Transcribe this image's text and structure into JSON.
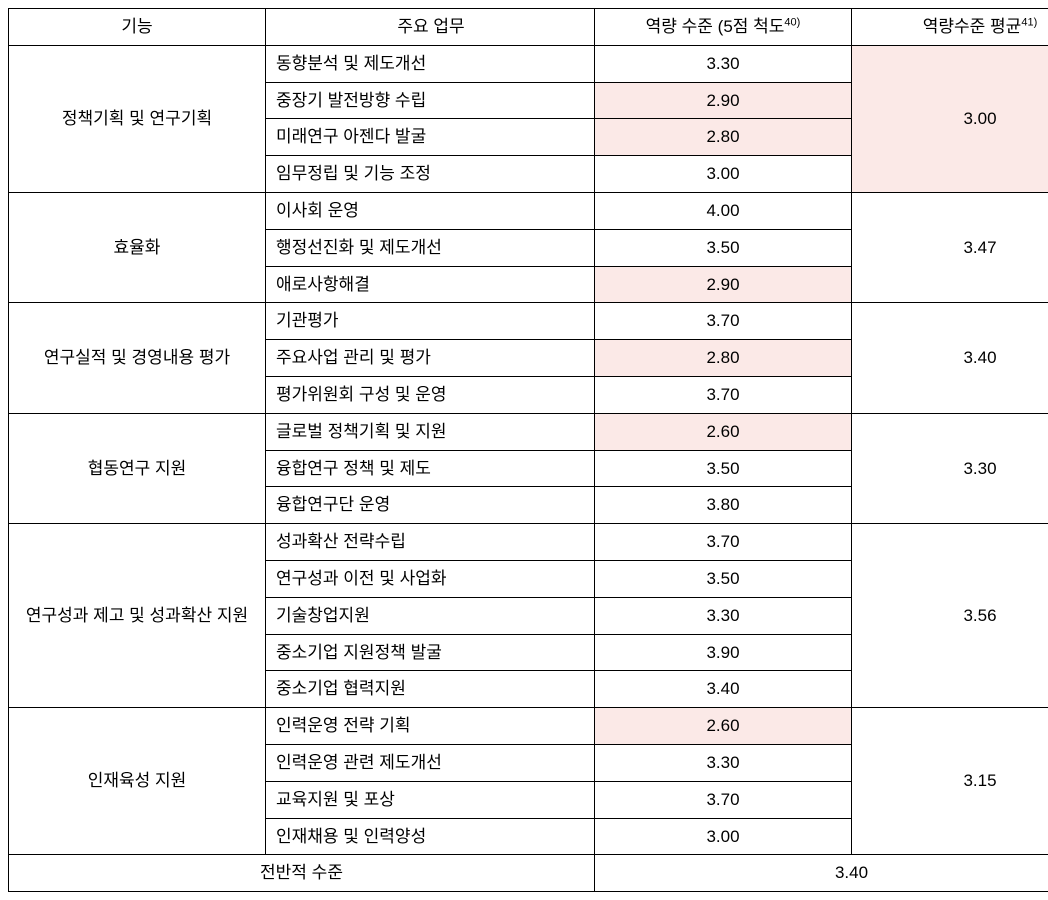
{
  "headers": {
    "func": "기능",
    "task": "주요 업무",
    "score": "역량 수준 (5점 척도",
    "score_sup": "40)",
    "avg": "역량수준 평균",
    "avg_sup": "41)"
  },
  "highlight_color": "#fbe9e7",
  "groups": [
    {
      "func": "정책기획 및 연구기획",
      "avg": "3.00",
      "avg_hl": true,
      "rows": [
        {
          "task": "동향분석 및 제도개선",
          "score": "3.30",
          "hl": false
        },
        {
          "task": "중장기 발전방향 수립",
          "score": "2.90",
          "hl": true
        },
        {
          "task": "미래연구 아젠다 발굴",
          "score": "2.80",
          "hl": true
        },
        {
          "task": "임무정립 및 기능 조정",
          "score": "3.00",
          "hl": false
        }
      ]
    },
    {
      "func": "효율화",
      "avg": "3.47",
      "avg_hl": false,
      "rows": [
        {
          "task": "이사회  운영",
          "score": "4.00",
          "hl": false
        },
        {
          "task": "행정선진화 및 제도개선",
          "score": "3.50",
          "hl": false
        },
        {
          "task": "애로사항해결",
          "score": "2.90",
          "hl": true
        }
      ]
    },
    {
      "func": "연구실적 및 경영내용 평가",
      "avg": "3.40",
      "avg_hl": false,
      "rows": [
        {
          "task": "기관평가",
          "score": "3.70",
          "hl": false
        },
        {
          "task": "주요사업 관리 및 평가",
          "score": "2.80",
          "hl": true
        },
        {
          "task": "평가위원회 구성 및 운영",
          "score": "3.70",
          "hl": false
        }
      ]
    },
    {
      "func": "협동연구 지원",
      "avg": "3.30",
      "avg_hl": false,
      "rows": [
        {
          "task": "글로벌  정책기획 및 지원",
          "score": "2.60",
          "hl": true
        },
        {
          "task": "융합연구 정책 및 제도",
          "score": "3.50",
          "hl": false
        },
        {
          "task": "융합연구단 운영",
          "score": "3.80",
          "hl": false
        }
      ]
    },
    {
      "func": "연구성과 제고 및 성과확산 지원",
      "avg": "3.56",
      "avg_hl": false,
      "rows": [
        {
          "task": "성과확산  전략수립",
          "score": "3.70",
          "hl": false
        },
        {
          "task": "연구성과 이전 및 사업화",
          "score": "3.50",
          "hl": false
        },
        {
          "task": "기술창업지원",
          "score": "3.30",
          "hl": false
        },
        {
          "task": "중소기업 지원정책 발굴",
          "score": "3.90",
          "hl": false
        },
        {
          "task": "중소기업 협력지원",
          "score": "3.40",
          "hl": false
        }
      ]
    },
    {
      "func": "인재육성 지원",
      "avg": "3.15",
      "avg_hl": false,
      "rows": [
        {
          "task": "인력운영  전략 기획",
          "score": "2.60",
          "hl": true
        },
        {
          "task": "인력운영 관련 제도개선",
          "score": "3.30",
          "hl": false
        },
        {
          "task": "교육지원 및 포상",
          "score": "3.70",
          "hl": false
        },
        {
          "task": "인재채용 및 인력양성",
          "score": "3.00",
          "hl": false
        }
      ]
    }
  ],
  "footer": {
    "label": "전반적 수준",
    "value": "3.40"
  }
}
